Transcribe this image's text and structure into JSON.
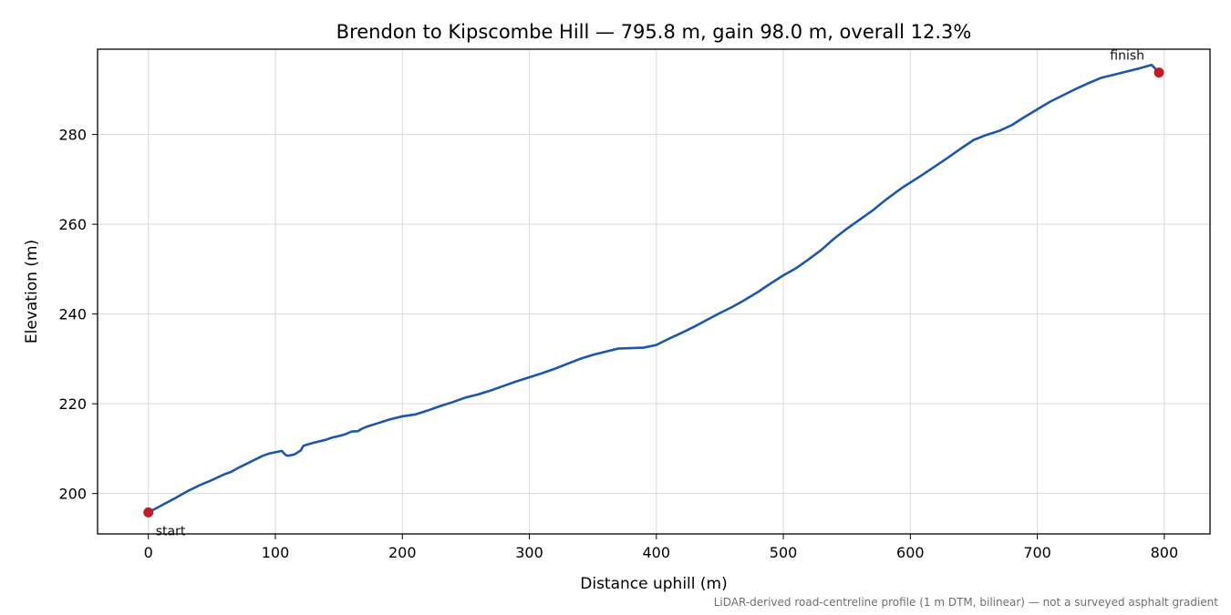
{
  "chart_data": {
    "type": "line",
    "title": "Brendon to Kipscombe Hill — 795.8 m, gain 98.0 m, overall 12.3%",
    "xlabel": "Distance uphill (m)",
    "ylabel": "Elevation (m)",
    "footnote": "LiDAR-derived road-centreline profile (1 m DTM, bilinear) — not a surveyed asphalt gradient",
    "xlim": [
      -40,
      836
    ],
    "ylim": [
      191,
      299
    ],
    "xticks": [
      0,
      100,
      200,
      300,
      400,
      500,
      600,
      700,
      800
    ],
    "yticks": [
      200,
      220,
      240,
      260,
      280
    ],
    "grid": true,
    "series": [
      {
        "color": "#1f57a8",
        "x": [
          0,
          10,
          20,
          30,
          40,
          50,
          60,
          65,
          70,
          80,
          90,
          95,
          100,
          105,
          108,
          110,
          115,
          120,
          122,
          125,
          130,
          140,
          145,
          150,
          155,
          160,
          165,
          168,
          172,
          180,
          190,
          200,
          210,
          220,
          230,
          240,
          250,
          260,
          270,
          280,
          290,
          300,
          310,
          320,
          330,
          340,
          350,
          360,
          370,
          380,
          390,
          400,
          410,
          420,
          430,
          440,
          450,
          460,
          470,
          480,
          490,
          500,
          510,
          520,
          530,
          540,
          550,
          560,
          570,
          580,
          590,
          595,
          600,
          610,
          620,
          630,
          640,
          650,
          660,
          670,
          680,
          690,
          700,
          710,
          720,
          730,
          740,
          750,
          760,
          770,
          780,
          790,
          795.8
        ],
        "y": [
          195.8,
          197.3,
          198.8,
          200.4,
          201.8,
          203.0,
          204.3,
          204.8,
          205.6,
          207.0,
          208.4,
          208.9,
          209.2,
          209.5,
          208.6,
          208.4,
          208.7,
          209.6,
          210.6,
          210.9,
          211.3,
          212.0,
          212.5,
          212.8,
          213.2,
          213.8,
          213.9,
          214.4,
          214.9,
          215.6,
          216.5,
          217.2,
          217.6,
          218.5,
          219.5,
          220.4,
          221.4,
          222.1,
          223.0,
          224.0,
          225.0,
          225.9,
          226.8,
          227.8,
          228.9,
          230.0,
          230.9,
          231.6,
          232.3,
          232.4,
          232.5,
          233.1,
          234.5,
          235.8,
          237.2,
          238.7,
          240.2,
          241.6,
          243.2,
          244.9,
          246.8,
          248.6,
          250.2,
          252.2,
          254.3,
          256.8,
          259.0,
          261.0,
          263.0,
          265.3,
          267.4,
          268.4,
          269.3,
          271.1,
          273.0,
          274.9,
          276.9,
          278.8,
          279.9,
          280.8,
          282.1,
          283.9,
          285.6,
          287.3,
          288.7,
          290.1,
          291.4,
          292.6,
          293.3,
          294.0,
          294.7,
          295.5,
          293.8
        ]
      }
    ],
    "annotations": [
      {
        "label": "start",
        "x": 0,
        "y": 195.8,
        "color": "#c41c27"
      },
      {
        "label": "finish",
        "x": 795.8,
        "y": 293.8,
        "color": "#c41c27"
      }
    ]
  }
}
